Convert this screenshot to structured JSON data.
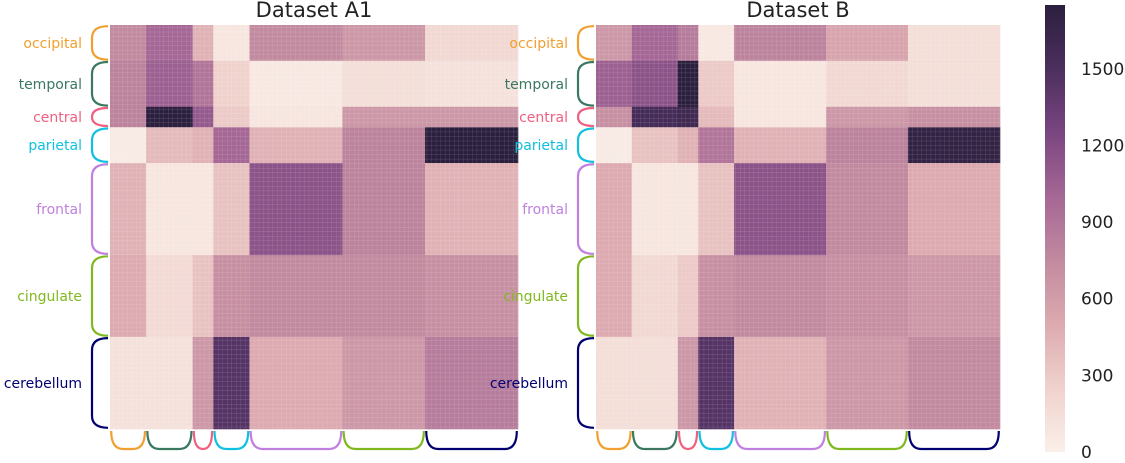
{
  "chart_data": {
    "type": "heatmap",
    "colormap": {
      "name": "cubehelix-light",
      "stops": [
        "#faefe9",
        "#f0d2cd",
        "#dcaab0",
        "#c28a9f",
        "#a56795",
        "#7a4680",
        "#4c2f5e",
        "#2b1f3e"
      ]
    },
    "groups": [
      {
        "name": "occipital",
        "size": 7,
        "color": "#f0a030"
      },
      {
        "name": "temporal",
        "size": 9,
        "color": "#3a7860"
      },
      {
        "name": "central",
        "size": 4,
        "color": "#f06080"
      },
      {
        "name": "parietal",
        "size": 7,
        "color": "#10c0e0"
      },
      {
        "name": "frontal",
        "size": 18,
        "color": "#c080e0"
      },
      {
        "name": "cingulate",
        "size": 16,
        "color": "#80b820"
      },
      {
        "name": "cerebellum",
        "size": 18,
        "color": "#000070"
      }
    ],
    "panels": [
      {
        "title": "Dataset A1",
        "blocks": [
          [
            750,
            1000,
            450,
            80,
            750,
            650,
            200
          ],
          [
            800,
            1050,
            900,
            250,
            60,
            150,
            120
          ],
          [
            800,
            1750,
            1100,
            300,
            80,
            650,
            650
          ],
          [
            40,
            400,
            450,
            1000,
            450,
            800,
            1750
          ],
          [
            450,
            80,
            80,
            350,
            1150,
            800,
            450
          ],
          [
            500,
            180,
            350,
            700,
            750,
            750,
            700
          ],
          [
            120,
            120,
            650,
            1450,
            500,
            650,
            850
          ]
        ]
      },
      {
        "title": "Dataset B",
        "blocks": [
          [
            650,
            1000,
            850,
            60,
            800,
            550,
            150
          ],
          [
            1050,
            1150,
            1750,
            300,
            80,
            200,
            150
          ],
          [
            700,
            1550,
            1600,
            400,
            80,
            650,
            700
          ],
          [
            40,
            350,
            450,
            900,
            450,
            800,
            1700
          ],
          [
            500,
            80,
            80,
            350,
            1150,
            750,
            500
          ],
          [
            500,
            200,
            300,
            700,
            750,
            700,
            650
          ],
          [
            150,
            150,
            650,
            1450,
            450,
            650,
            750
          ]
        ]
      }
    ],
    "colorbar": {
      "min": 0,
      "max": 1750,
      "ticks": [
        0,
        300,
        600,
        900,
        1200,
        1500
      ]
    },
    "grid": true
  }
}
